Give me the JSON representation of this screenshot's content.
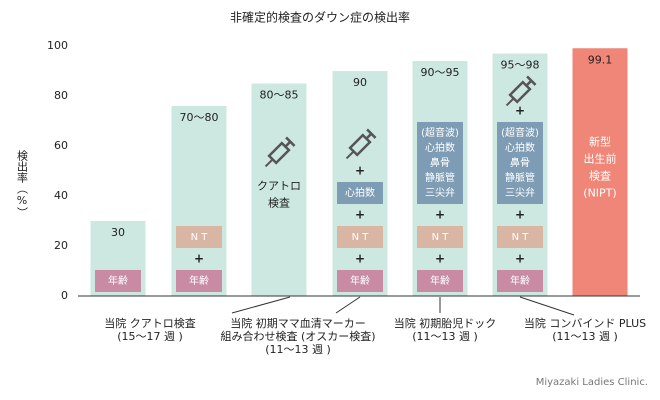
{
  "chart_data": {
    "type": "bar",
    "title": "非確定的検査のダウン症の検出率",
    "ylabel": "検出率（%）",
    "ylim": [
      0,
      100
    ],
    "yticks": [
      0,
      20,
      40,
      60,
      80,
      100
    ],
    "grid": false,
    "color": "#cde8e0",
    "highlight_color": "#ef8677",
    "values": [
      30,
      76,
      85,
      90,
      94,
      97,
      99.1
    ],
    "value_labels": [
      "30",
      "70〜80",
      "80〜85",
      "90",
      "90〜95",
      "95〜98",
      "99.1"
    ],
    "bar_items": [
      [
        {
          "lines": [
            "年齢"
          ],
          "color": "#c98aa3"
        }
      ],
      [
        {
          "lines": [
            "年齢"
          ],
          "color": "#c98aa3"
        },
        {
          "lines": [
            "+"
          ]
        },
        {
          "lines": [
            "N T"
          ],
          "color": "#d9b5a3"
        }
      ],
      [],
      [
        {
          "lines": [
            "年齢"
          ],
          "color": "#c98aa3"
        },
        {
          "lines": [
            "+"
          ]
        },
        {
          "lines": [
            "N T"
          ],
          "color": "#d9b5a3"
        },
        {
          "lines": [
            "+"
          ]
        },
        {
          "lines": [
            "心拍数"
          ],
          "color": "#7e9db5"
        },
        {
          "lines": [
            "+"
          ]
        }
      ],
      [
        {
          "lines": [
            "年齢"
          ],
          "color": "#c98aa3"
        },
        {
          "lines": [
            "+"
          ]
        },
        {
          "lines": [
            "N T"
          ],
          "color": "#d9b5a3"
        },
        {
          "lines": [
            "+"
          ]
        },
        {
          "lines": [
            "(超音波)",
            "心拍数",
            "鼻骨",
            "静脈管",
            "三尖弁"
          ],
          "color": "#7e9db5"
        }
      ],
      [
        {
          "lines": [
            "年齢"
          ],
          "color": "#c98aa3"
        },
        {
          "lines": [
            "+"
          ]
        },
        {
          "lines": [
            "N T"
          ],
          "color": "#d9b5a3"
        },
        {
          "lines": [
            "+"
          ]
        },
        {
          "lines": [
            "(超音波)",
            "心拍数",
            "鼻骨",
            "静脈管",
            "三尖弁"
          ],
          "color": "#7e9db5"
        },
        {
          "lines": [
            "+"
          ]
        }
      ],
      []
    ],
    "bar_texts": [
      null,
      null,
      [
        "クアトロ",
        "検査"
      ],
      null,
      null,
      null,
      [
        "新型",
        "出生前",
        "検査",
        "(NIPT)"
      ]
    ],
    "groups": [
      {
        "lines": [
          "当院 クアトロ検査",
          "(15〜17 週 )"
        ]
      },
      {
        "lines": [
          "当院 初期ママ血清マーカー",
          "組み合わせ検査 (オスカー検査)",
          "(11〜13 週 )"
        ]
      },
      {
        "lines": [
          "当院 初期胎児ドック",
          "(11〜13 週 )"
        ]
      },
      {
        "lines": [
          "当院 コンバインド PLUS",
          "(11〜13 週 )"
        ]
      }
    ],
    "footer": "Miyazaki Ladies Clinic."
  }
}
